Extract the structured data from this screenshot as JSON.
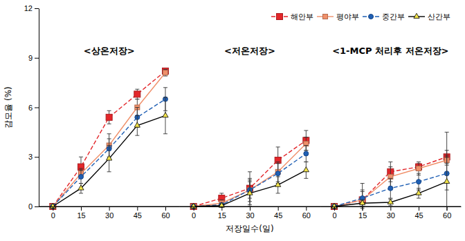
{
  "chart_data": {
    "type": "line",
    "x_label": "저장일수(일)",
    "y_label": "감모율 (%)",
    "ylim": [
      0,
      12
    ],
    "yticks": [
      0,
      3,
      6,
      9,
      12
    ],
    "legend": "top-right",
    "series": [
      {
        "name": "해안부",
        "color": "#e3262a",
        "marker": "square",
        "line_style": "dashed"
      },
      {
        "name": "평야부",
        "color": "#f0906a",
        "marker": "square",
        "line_style": "solid"
      },
      {
        "name": "중간부",
        "color": "#1f5fb4",
        "marker": "circle",
        "line_style": "dashed"
      },
      {
        "name": "산간부",
        "color": "#000000",
        "marker": "triangle",
        "line_style": "solid"
      }
    ],
    "panels": [
      {
        "title": "<상온저장>",
        "categories": [
          "0",
          "15",
          "30",
          "45",
          "60"
        ],
        "series": [
          {
            "values": [
              0,
              2.4,
              5.4,
              6.8,
              8.2
            ],
            "errors": [
              0,
              0.6,
              0.4,
              0.3,
              0.1
            ]
          },
          {
            "values": [
              0,
              2.0,
              3.7,
              6.0,
              8.1
            ],
            "errors": [
              0,
              0.3,
              0.7,
              0.5,
              0.2
            ]
          },
          {
            "values": [
              0,
              1.8,
              3.5,
              5.4,
              6.5
            ],
            "errors": [
              0,
              0.4,
              0.6,
              0.6,
              0.7
            ]
          },
          {
            "values": [
              0,
              1.1,
              2.9,
              4.9,
              5.5
            ],
            "errors": [
              0,
              0.3,
              0.8,
              0.6,
              1.1
            ]
          }
        ]
      },
      {
        "title": "<저온저장>",
        "categories": [
          "0",
          "15",
          "30",
          "45",
          "60"
        ],
        "series": [
          {
            "values": [
              0,
              0.5,
              1.1,
              2.8,
              4.0
            ],
            "errors": [
              0,
              0.3,
              1.0,
              0.8,
              0.6
            ]
          },
          {
            "values": [
              0,
              0.2,
              1.0,
              2.1,
              3.8
            ],
            "errors": [
              0,
              0.2,
              0.7,
              0.6,
              0.4
            ]
          },
          {
            "values": [
              0,
              0.1,
              1.0,
              2.0,
              3.2
            ],
            "errors": [
              0,
              0.1,
              0.5,
              0.6,
              0.5
            ]
          },
          {
            "values": [
              0,
              0.05,
              0.8,
              1.3,
              2.2
            ],
            "errors": [
              0,
              0.1,
              0.8,
              0.5,
              0.5
            ]
          }
        ]
      },
      {
        "title": "<1-MCP 처리후 저온저장>",
        "categories": [
          "0",
          "15",
          "30",
          "45",
          "60"
        ],
        "series": [
          {
            "values": [
              0,
              0.4,
              2.1,
              2.4,
              3.0
            ],
            "errors": [
              0,
              0.5,
              0.6,
              0.2,
              0.4
            ]
          },
          {
            "values": [
              0,
              0.4,
              1.8,
              2.3,
              2.8
            ],
            "errors": [
              0,
              1.0,
              0.6,
              0.4,
              0.3
            ]
          },
          {
            "values": [
              0,
              0.5,
              1.1,
              1.5,
              2.0
            ],
            "errors": [
              0,
              0.5,
              0.6,
              0.5,
              1.0
            ]
          },
          {
            "values": [
              0,
              0.2,
              0.25,
              0.8,
              1.5
            ],
            "errors": [
              0,
              0.2,
              0.2,
              0.3,
              3.0
            ]
          }
        ]
      }
    ]
  }
}
